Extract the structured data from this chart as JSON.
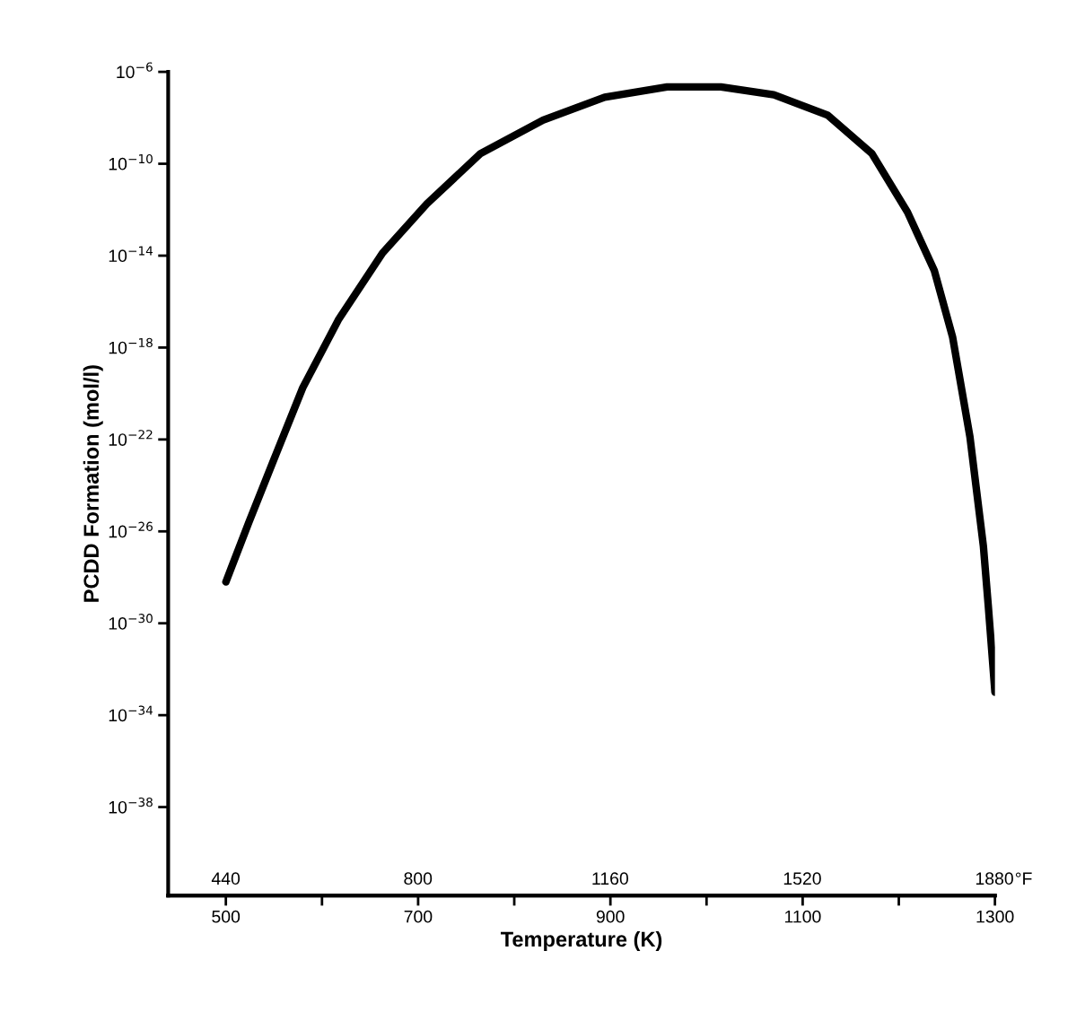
{
  "chart_data": {
    "type": "line",
    "xlabel": "Temperature (K)",
    "ylabel": "PCDD Formation (mol/l)",
    "log": "y",
    "x": [
      500,
      524,
      552,
      580,
      617,
      663,
      709,
      765,
      830,
      894,
      959,
      1015,
      1070,
      1126,
      1172,
      1209,
      1237,
      1256,
      1274,
      1288,
      1293,
      1300
    ],
    "series": [
      {
        "color": "#000000",
        "values": [
          6.3e-29,
          2.5e-26,
          2.2e-23,
          1.8e-20,
          1.6e-17,
          1.3e-14,
          1.8e-12,
          2.8e-10,
          7.9e-09,
          7.9e-08,
          2.2e-07,
          2.2e-07,
          1e-07,
          1.3e-08,
          2.8e-10,
          7.9e-13,
          2.2e-15,
          2.8e-18,
          1.3e-22,
          2.2e-27,
          6.3e-30,
          1e-33
        ]
      }
    ],
    "xlim": [
      440,
      1300
    ],
    "ylim": [
      1.4e-42,
      1e-06
    ],
    "xticks": [
      500,
      {
        "value": 600,
        "label": null
      },
      700,
      {
        "value": 800,
        "label": null
      },
      900,
      {
        "value": 1000,
        "label": null
      },
      1100,
      {
        "value": 1200,
        "label": null
      },
      1300
    ],
    "x2lim": [
      332,
      1881
    ],
    "x2ticks": [
      440,
      800,
      1160,
      1520,
      1880
    ],
    "x2label": "°F",
    "yticks": [
      {
        "value": 1e-06,
        "label": "10$^{−6}$"
      },
      {
        "value": 1e-10,
        "label": "10$^{−10}$"
      },
      {
        "value": 1e-14,
        "label": "10$^{−14}$"
      },
      {
        "value": 1e-18,
        "label": "10$^{−18}$"
      },
      {
        "value": 1e-22,
        "label": "10$^{−22}$"
      },
      {
        "value": 1e-26,
        "label": "10$^{−26}$"
      },
      {
        "value": 1e-30,
        "label": "10$^{−30}$"
      },
      {
        "value": 1e-34,
        "label": "10$^{−34}$"
      },
      {
        "value": 1e-38,
        "label": "10$^{−38}$"
      }
    ],
    "grid": false,
    "marker": "none",
    "line_style": "solid"
  }
}
